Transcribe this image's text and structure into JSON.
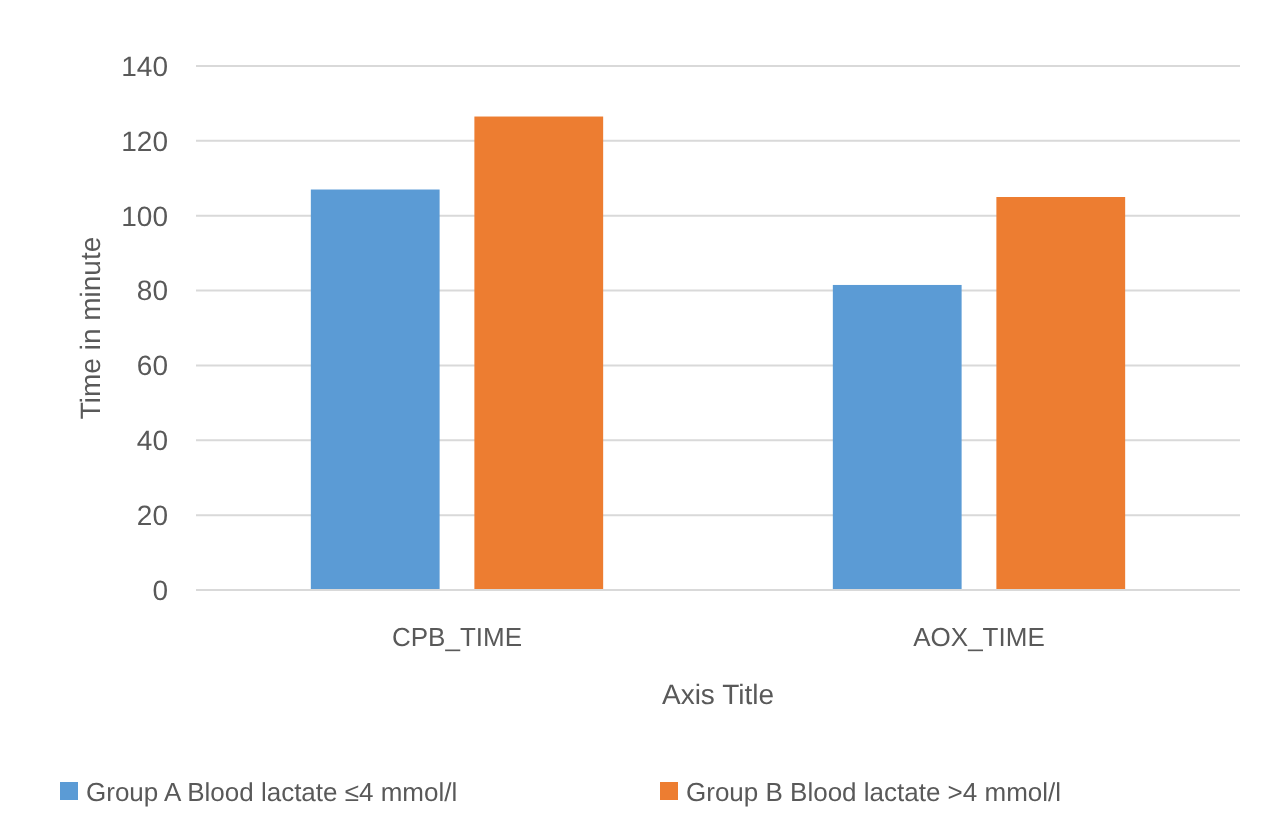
{
  "chart_data": {
    "type": "bar",
    "xlabel": "Axis Title",
    "ylabel": "Time in minute",
    "categories": [
      "CPB_TIME",
      "AOX_TIME"
    ],
    "series": [
      {
        "name": "Group A Blood lactate ≤4 mmol/l",
        "color": "#5b9bd5",
        "values": [
          107,
          81.5
        ]
      },
      {
        "name": "Group B Blood lactate >4 mmol/l",
        "color": "#ed7d31",
        "values": [
          126.5,
          105
        ]
      }
    ],
    "ylim": [
      0,
      140
    ],
    "yticks": [
      0,
      20,
      40,
      60,
      80,
      100,
      120,
      140
    ],
    "grid": "y",
    "legend": "bottom"
  }
}
